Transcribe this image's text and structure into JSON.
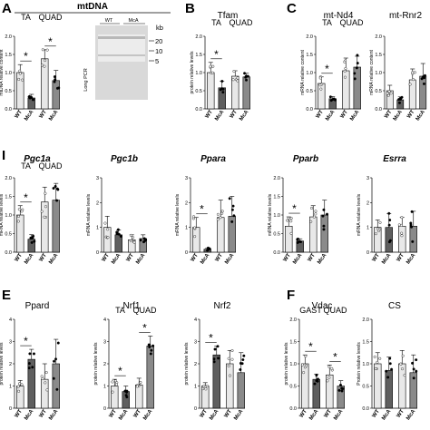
{
  "figure": {
    "mtdna_header": "mtDNA",
    "gel": {
      "title": "Long PCR",
      "lanes": [
        "WT",
        "McA"
      ],
      "unit": "kb",
      "markers": [
        "20",
        "10",
        "5"
      ]
    }
  },
  "chart_data": [
    {
      "id": "A",
      "panel_label": "A",
      "type": "bar",
      "ylabel": "mtDNA relative content",
      "ylim": [
        0,
        2.0
      ],
      "yticks": [
        "0.0",
        "0.5",
        "1.0",
        "1.5",
        "2.0"
      ],
      "groups": [
        "TA",
        "QUAD"
      ],
      "categories": [
        "WT",
        "McA",
        "WT",
        "McA"
      ],
      "values": [
        1.0,
        0.3,
        1.38,
        0.78
      ],
      "errors": [
        0.22,
        0.1,
        0.25,
        0.28
      ],
      "sig": [
        [
          0,
          1
        ],
        [
          2,
          3
        ]
      ]
    },
    {
      "id": "B",
      "panel_label": "B",
      "type": "bar",
      "title": "Tfam",
      "ylabel": "protein relative levels",
      "ylim": [
        0,
        2.0
      ],
      "yticks": [
        "0.0",
        "0.5",
        "1.0",
        "1.5",
        "2.0"
      ],
      "groups": [
        "TA",
        "QUAD"
      ],
      "categories": [
        "WT",
        "McA",
        "WT",
        "McA"
      ],
      "values": [
        1.0,
        0.58,
        0.9,
        0.88
      ],
      "errors": [
        0.28,
        0.18,
        0.15,
        0.1
      ],
      "sig": [
        [
          0,
          1
        ]
      ]
    },
    {
      "id": "C1",
      "panel_label": "C",
      "type": "bar",
      "title": "mt-Nd4",
      "ylabel": "mRNA relative content",
      "ylim": [
        0,
        2.0
      ],
      "yticks": [
        "0.0",
        "0.5",
        "1.0",
        "1.5",
        "2.0"
      ],
      "groups": [
        "TA",
        "QUAD"
      ],
      "categories": [
        "WT",
        "McA",
        "WT",
        "McA"
      ],
      "values": [
        0.7,
        0.28,
        1.05,
        1.15
      ],
      "errors": [
        0.18,
        0.06,
        0.35,
        0.3
      ],
      "sig": [
        [
          0,
          1
        ]
      ]
    },
    {
      "id": "C2",
      "type": "bar",
      "title": "mt-Rnr2",
      "ylabel": "mRNA relative content",
      "ylim": [
        0,
        2.0
      ],
      "yticks": [
        "0.0",
        "0.5",
        "1.0",
        "1.5",
        "2.0"
      ],
      "groups": [],
      "categories": [
        "WT",
        "McA",
        "WT",
        "McA"
      ],
      "values": [
        0.5,
        0.25,
        0.8,
        0.9
      ],
      "errors": [
        0.15,
        0.08,
        0.3,
        0.35
      ],
      "sig": []
    },
    {
      "id": "D1",
      "panel_label": "I",
      "type": "bar",
      "title": "Pgc1a",
      "italic": true,
      "ylabel": "mRNA relative levels",
      "ylim": [
        0,
        2.0
      ],
      "yticks": [
        "0.0",
        "0.5",
        "1.0",
        "1.5",
        "2.0"
      ],
      "groups": [
        "TA",
        "QUAD"
      ],
      "categories": [
        "WT",
        "McA",
        "WT",
        "McA"
      ],
      "values": [
        1.0,
        0.35,
        1.35,
        1.4
      ],
      "errors": [
        0.25,
        0.12,
        0.4,
        0.45
      ],
      "sig": [
        [
          0,
          1
        ]
      ]
    },
    {
      "id": "D2",
      "type": "bar",
      "title": "Pgc1b",
      "italic": true,
      "ylabel": "mRNA relative levels",
      "ylim": [
        0,
        3.0
      ],
      "yticks": [
        "0",
        "1",
        "2",
        "3"
      ],
      "groups": [],
      "categories": [
        "WT",
        "McA",
        "WT",
        "McA"
      ],
      "values": [
        1.0,
        0.7,
        0.5,
        0.55
      ],
      "errors": [
        0.45,
        0.2,
        0.2,
        0.15
      ],
      "sig": []
    },
    {
      "id": "D3",
      "type": "bar",
      "title": "Ppara",
      "italic": true,
      "ylabel": "mRNA relative levels",
      "ylim": [
        0,
        3.0
      ],
      "yticks": [
        "0",
        "1",
        "2",
        "3"
      ],
      "groups": [],
      "categories": [
        "WT",
        "McA",
        "WT",
        "McA"
      ],
      "values": [
        1.0,
        0.12,
        1.4,
        1.45
      ],
      "errors": [
        0.4,
        0.05,
        0.7,
        0.8
      ],
      "sig": [
        [
          0,
          1
        ]
      ]
    },
    {
      "id": "D4",
      "type": "bar",
      "title": "Pparb",
      "italic": true,
      "ylabel": "mRNA relative levels",
      "ylim": [
        0,
        2.0
      ],
      "yticks": [
        "0.0",
        "0.5",
        "1.0",
        "1.5",
        "2.0"
      ],
      "groups": [],
      "categories": [
        "WT",
        "McA",
        "WT",
        "McA"
      ],
      "values": [
        0.7,
        0.3,
        0.95,
        1.0
      ],
      "errors": [
        0.25,
        0.06,
        0.3,
        0.4
      ],
      "sig": [
        [
          0,
          1
        ]
      ]
    },
    {
      "id": "D5",
      "type": "bar",
      "title": "Esrra",
      "italic": true,
      "ylabel": "mRNA relative levels",
      "ylim": [
        0,
        3.0
      ],
      "yticks": [
        "0",
        "1",
        "2",
        "3"
      ],
      "groups": [],
      "categories": [
        "WT",
        "McA",
        "WT",
        "McA"
      ],
      "values": [
        1.0,
        1.0,
        1.05,
        1.05
      ],
      "errors": [
        0.3,
        0.55,
        0.35,
        0.6
      ],
      "sig": []
    },
    {
      "id": "E1",
      "panel_label": "E",
      "type": "bar",
      "title": "Ppard",
      "ylabel": "protein relative levels",
      "ylim": [
        0,
        4.0
      ],
      "yticks": [
        "0",
        "1",
        "2",
        "3",
        "4"
      ],
      "groups": [],
      "categories": [
        "WT",
        "McA",
        "WT",
        "McA"
      ],
      "values": [
        1.0,
        2.2,
        1.3,
        2.0
      ],
      "errors": [
        0.25,
        0.45,
        0.7,
        1.1
      ],
      "sig": [
        [
          0,
          1
        ]
      ]
    },
    {
      "id": "E2",
      "type": "bar",
      "title": "Nrf1",
      "ylabel": "protein relative levels",
      "ylim": [
        0,
        4.0
      ],
      "yticks": [
        "0",
        "1",
        "2",
        "3",
        "4"
      ],
      "groups": [
        "TA",
        "QUAD"
      ],
      "categories": [
        "WT",
        "McA",
        "WT",
        "McA"
      ],
      "values": [
        1.0,
        0.75,
        1.05,
        2.8
      ],
      "errors": [
        0.3,
        0.25,
        0.3,
        0.45
      ],
      "sig": [
        [
          0,
          1
        ],
        [
          2,
          3
        ]
      ]
    },
    {
      "id": "E3",
      "type": "bar",
      "title": "Nrf2",
      "ylabel": "protein relative levels",
      "ylim": [
        0,
        4.0
      ],
      "yticks": [
        "0",
        "1",
        "2",
        "3",
        "4"
      ],
      "groups": [],
      "categories": [
        "WT",
        "McA",
        "WT",
        "McA"
      ],
      "values": [
        1.0,
        2.4,
        2.0,
        1.6
      ],
      "errors": [
        0.15,
        0.4,
        0.6,
        0.9
      ],
      "sig": [
        [
          0,
          1
        ]
      ]
    },
    {
      "id": "F1",
      "panel_label": "F",
      "type": "bar",
      "title": "Vdac",
      "ylabel": "protein relative levels",
      "ylim": [
        0,
        2.0
      ],
      "yticks": [
        "0.0",
        "0.5",
        "1.0",
        "1.5",
        "2.0"
      ],
      "groups": [
        "GAST",
        "QUAD"
      ],
      "categories": [
        "WT",
        "McA",
        "WT",
        "McA"
      ],
      "values": [
        1.0,
        0.65,
        0.75,
        0.5
      ],
      "errors": [
        0.2,
        0.12,
        0.22,
        0.12
      ],
      "sig": [
        [
          0,
          1
        ],
        [
          2,
          3
        ]
      ]
    },
    {
      "id": "F2",
      "type": "bar",
      "title": "CS",
      "ylabel": "Protein relative levels",
      "ylim": [
        0,
        2.0
      ],
      "yticks": [
        "0.0",
        "0.5",
        "1.0",
        "1.5",
        "2.0"
      ],
      "groups": [],
      "categories": [
        "WT",
        "McA",
        "WT",
        "McA"
      ],
      "values": [
        1.0,
        0.85,
        1.0,
        0.8
      ],
      "errors": [
        0.25,
        0.3,
        0.3,
        0.4
      ],
      "sig": []
    }
  ]
}
